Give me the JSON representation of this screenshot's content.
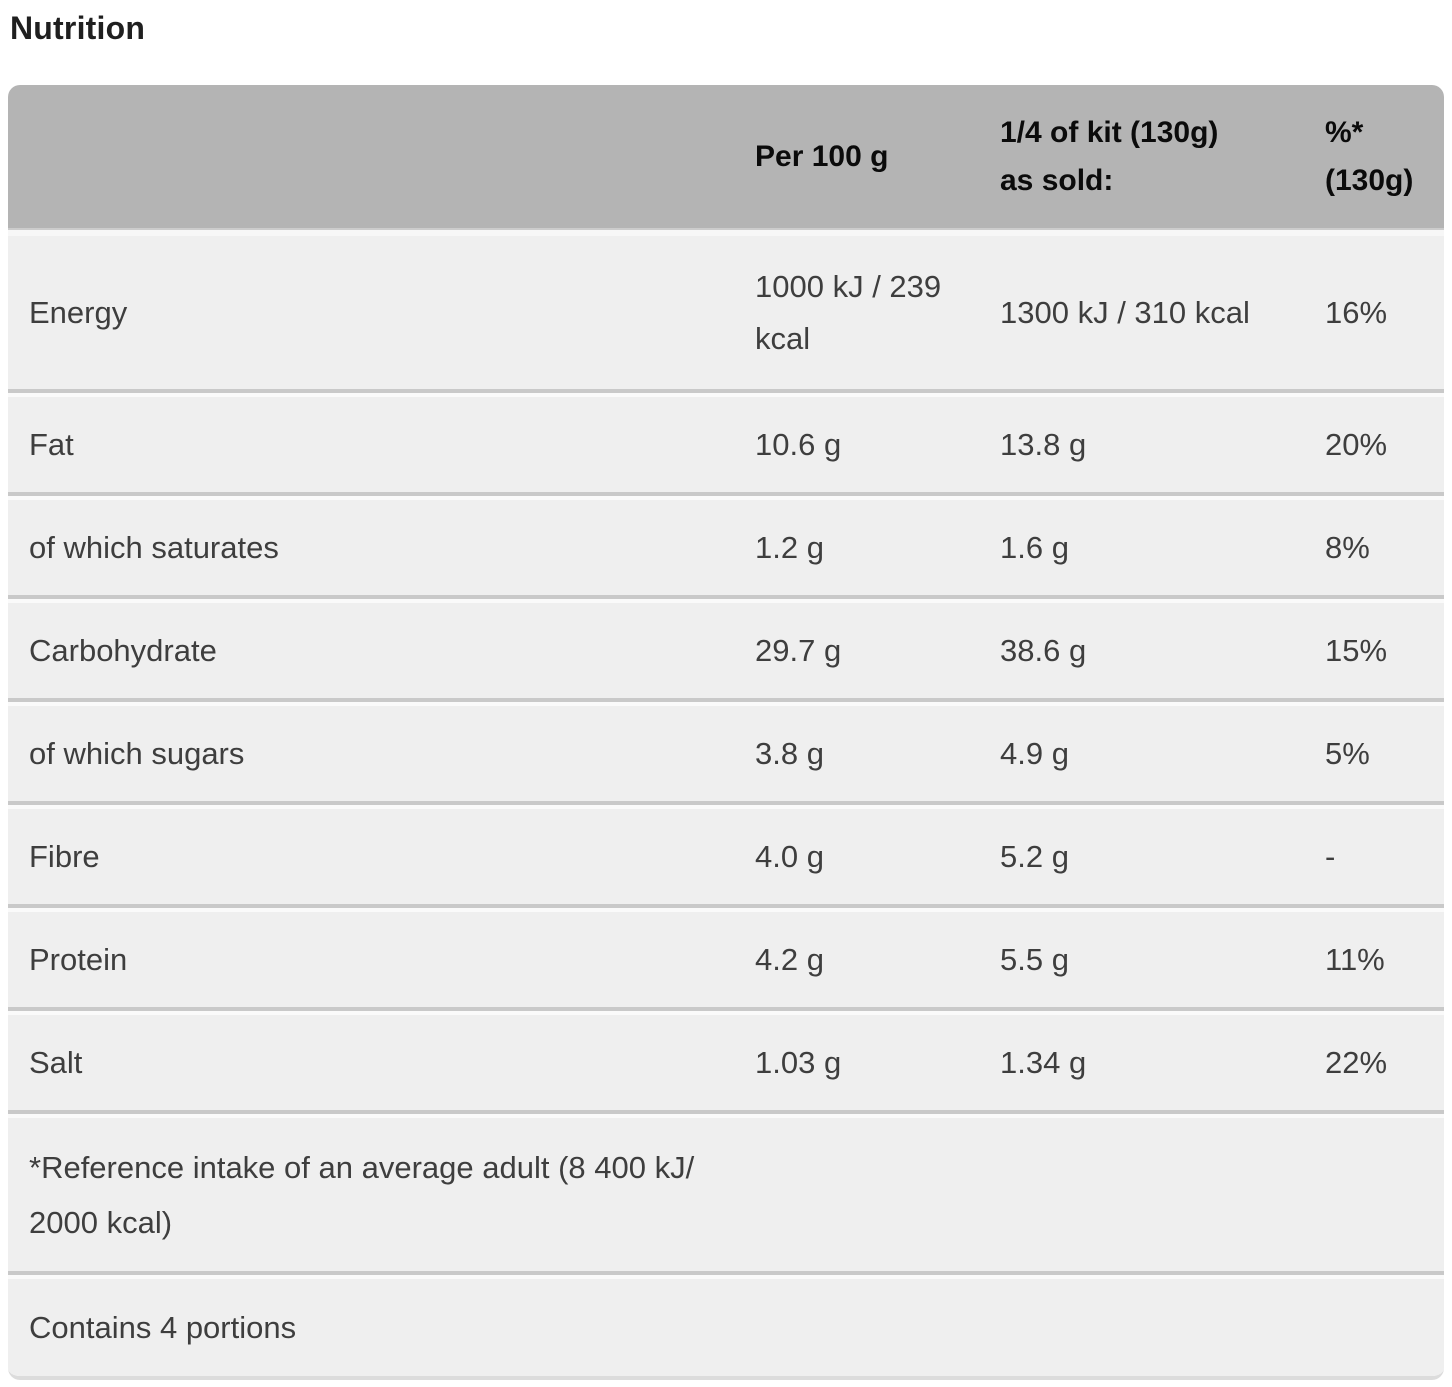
{
  "page": {
    "title": "Nutrition"
  },
  "colors": {
    "header_background": "#b4b4b4",
    "row_background": "#efefef",
    "heading_text": "#1f1f1f",
    "body_text": "#3e3e3e"
  },
  "table": {
    "header": {
      "label_column": "",
      "per_100g": "Per 100 g",
      "portion_line1": "1/4 of kit (130g)",
      "portion_line2": "as sold:",
      "ri_line1": "%*",
      "ri_line2": "(130g)"
    },
    "rows": [
      {
        "label": "Energy",
        "per_100g": "1000 kJ / 239 kcal",
        "per_portion": "1300 kJ / 310 kcal",
        "reference_intake": "16%"
      },
      {
        "label": "Fat",
        "per_100g": "10.6 g",
        "per_portion": "13.8 g",
        "reference_intake": "20%"
      },
      {
        "label": "of which saturates",
        "per_100g": "1.2 g",
        "per_portion": "1.6 g",
        "reference_intake": "8%"
      },
      {
        "label": "Carbohydrate",
        "per_100g": "29.7 g",
        "per_portion": "38.6 g",
        "reference_intake": "15%"
      },
      {
        "label": "of which sugars",
        "per_100g": "3.8 g",
        "per_portion": "4.9 g",
        "reference_intake": "5%"
      },
      {
        "label": "Fibre",
        "per_100g": "4.0 g",
        "per_portion": "5.2 g",
        "reference_intake": "-"
      },
      {
        "label": "Protein",
        "per_100g": "4.2 g",
        "per_portion": "5.5 g",
        "reference_intake": "11%"
      },
      {
        "label": "Salt",
        "per_100g": "1.03 g",
        "per_portion": "1.34 g",
        "reference_intake": "22%"
      }
    ],
    "footnotes": [
      "*Reference intake of an average adult (8 400 kJ/ 2000 kcal)",
      "Contains 4 portions"
    ]
  }
}
